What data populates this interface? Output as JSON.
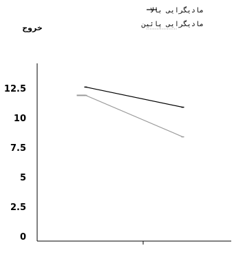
{
  "chart_data": {
    "type": "line",
    "ylabel": "خروج",
    "yticks": [
      "0",
      "2.5",
      "5",
      "7.5",
      "10",
      "12.5"
    ],
    "ylim": [
      0,
      15
    ],
    "x": [
      0,
      1
    ],
    "xlim": [
      -0.5,
      1.5
    ],
    "grid": false,
    "legend_position": "top-right",
    "series": [
      {
        "name": "مادیگرایی بالا",
        "values": [
          13.0,
          11.3
        ],
        "color": "#000000"
      },
      {
        "name": "مادیگرایی پائین",
        "values": [
          12.3,
          8.8
        ],
        "color": "#999999"
      }
    ]
  }
}
